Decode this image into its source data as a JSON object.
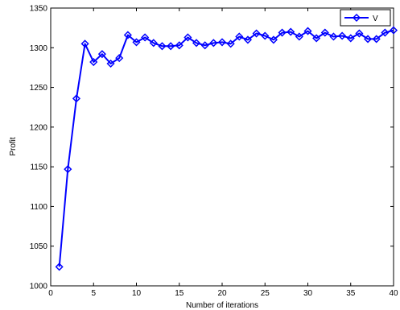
{
  "chart_data": {
    "type": "line",
    "title": "",
    "xlabel": "Number of iterations",
    "ylabel": "Profit",
    "xlim": [
      0,
      40
    ],
    "ylim": [
      1000,
      1350
    ],
    "xticks": [
      0,
      5,
      10,
      15,
      20,
      25,
      30,
      35,
      40
    ],
    "yticks": [
      1000,
      1050,
      1100,
      1150,
      1200,
      1250,
      1300,
      1350
    ],
    "grid": false,
    "legend_position": "top-right",
    "marker": "diamond",
    "color": "#0000ff",
    "series": [
      {
        "name": "V",
        "x": [
          1,
          2,
          3,
          4,
          5,
          6,
          7,
          8,
          9,
          10,
          11,
          12,
          13,
          14,
          15,
          16,
          17,
          18,
          19,
          20,
          21,
          22,
          23,
          24,
          25,
          26,
          27,
          28,
          29,
          30,
          31,
          32,
          33,
          34,
          35,
          36,
          37,
          38,
          39,
          40
        ],
        "values": [
          1024,
          1147,
          1236,
          1305,
          1282,
          1292,
          1280,
          1287,
          1316,
          1307,
          1313,
          1306,
          1302,
          1302,
          1303,
          1313,
          1306,
          1303,
          1306,
          1307,
          1305,
          1314,
          1310,
          1318,
          1315,
          1310,
          1319,
          1320,
          1314,
          1321,
          1312,
          1319,
          1314,
          1315,
          1312,
          1318,
          1311,
          1311,
          1319,
          1322
        ]
      }
    ]
  }
}
